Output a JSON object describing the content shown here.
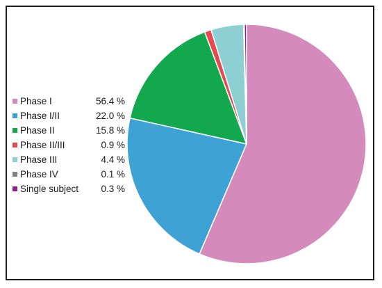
{
  "chart_data": {
    "type": "pie",
    "start_angle_deg": 0,
    "direction": "clockwise",
    "slices": [
      {
        "label": "Phase I",
        "value": 56.4,
        "value_text": "56.4 %",
        "color": "#d48bbc"
      },
      {
        "label": "Phase I/II",
        "value": 22.0,
        "value_text": "22.0 %",
        "color": "#3fa2d4"
      },
      {
        "label": "Phase II",
        "value": 15.8,
        "value_text": "15.8 %",
        "color": "#14a84e"
      },
      {
        "label": "Phase II/III",
        "value": 0.9,
        "value_text": "0.9 %",
        "color": "#e44a4f"
      },
      {
        "label": "Phase III",
        "value": 4.4,
        "value_text": "4.4 %",
        "color": "#8ecfd3"
      },
      {
        "label": "Phase IV",
        "value": 0.1,
        "value_text": "0.1 %",
        "color": "#808080"
      },
      {
        "label": "Single subject",
        "value": 0.3,
        "value_text": "0.3 %",
        "color": "#8b1f8c"
      }
    ],
    "legend_position": "left"
  }
}
